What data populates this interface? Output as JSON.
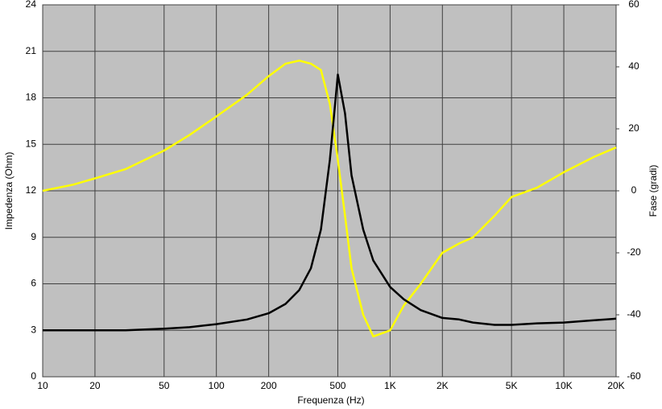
{
  "chart_data": {
    "type": "line",
    "xlabel": "Frequenza (Hz)",
    "ylabel": "Impedenza (Ohm)",
    "y2label": "Fase (gradi)",
    "xscale": "log",
    "grid": true,
    "x": [
      10,
      15,
      20,
      30,
      50,
      70,
      100,
      150,
      200,
      250,
      300,
      350,
      400,
      450,
      500,
      550,
      600,
      700,
      800,
      1000,
      1200,
      1500,
      2000,
      2500,
      3000,
      4000,
      5000,
      7000,
      10000,
      15000,
      20000
    ],
    "series": [
      {
        "color": "#ffff00",
        "axis": "y2",
        "values": [
          0,
          2,
          4,
          7,
          13,
          18,
          24,
          31,
          37,
          41,
          42,
          41,
          39,
          28,
          10,
          -8,
          -25,
          -40,
          -47,
          -45,
          -37,
          -30,
          -20,
          -17,
          -15,
          -8,
          -2,
          1,
          6,
          11,
          14
        ]
      },
      {
        "color": "#000000",
        "values": [
          3.0,
          3.0,
          3.0,
          3.0,
          3.1,
          3.2,
          3.4,
          3.7,
          4.1,
          4.7,
          5.6,
          7.0,
          9.5,
          14,
          19.5,
          17,
          13,
          9.5,
          7.5,
          5.8,
          5.0,
          4.3,
          3.8,
          3.7,
          3.5,
          3.35,
          3.35,
          3.45,
          3.5,
          3.65,
          3.75
        ]
      }
    ],
    "xlim": [
      10,
      20000
    ],
    "xticks": [
      10,
      20,
      50,
      100,
      200,
      500,
      {
        "value": 1000,
        "label": "1K"
      },
      {
        "value": 2000,
        "label": "2K"
      },
      {
        "value": 5000,
        "label": "5K"
      },
      {
        "value": 10000,
        "label": "10K"
      },
      {
        "value": 20000,
        "label": "20K"
      }
    ],
    "ylim": [
      0,
      24
    ],
    "yticks": [
      0,
      3,
      6,
      9,
      12,
      15,
      18,
      21,
      24
    ],
    "y2lim": [
      -60,
      60
    ],
    "y2ticks": [
      -60,
      -40,
      -20,
      0,
      20,
      40,
      60
    ]
  }
}
